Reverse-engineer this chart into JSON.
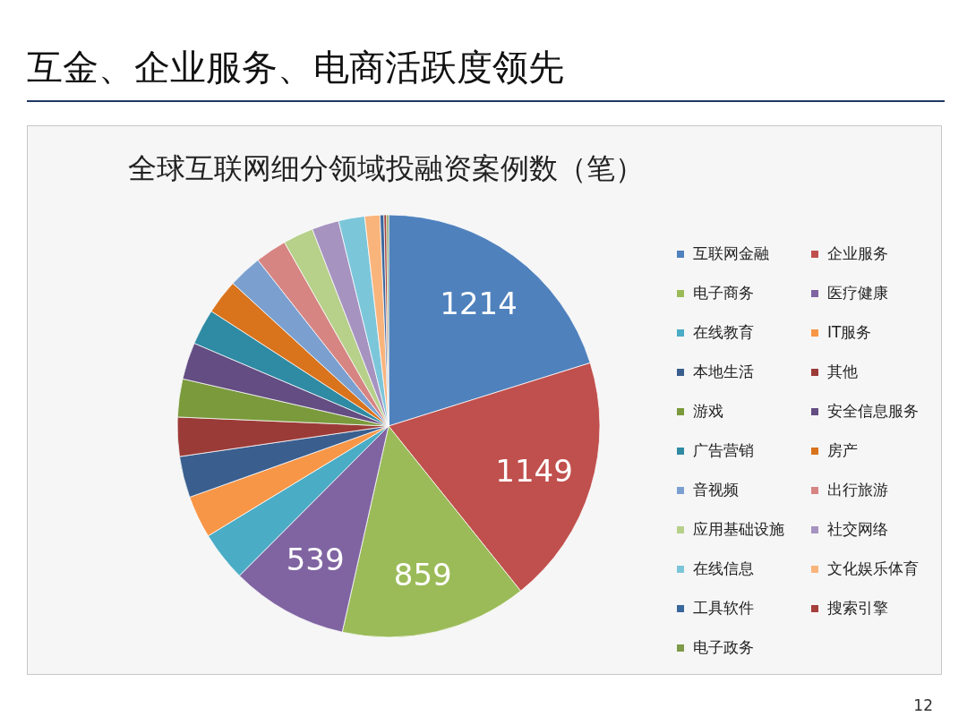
{
  "chart_data": {
    "type": "pie",
    "title": "互金、企业服务、电商活跃度领先",
    "subtitle": "全球互联网细分领域投融资案例数（笔）",
    "categories": [
      "互联网金融",
      "企业服务",
      "电子商务",
      "医疗健康",
      "在线教育",
      "IT服务",
      "本地生活",
      "其他",
      "游戏",
      "安全信息服务",
      "广告营销",
      "房产",
      "音视频",
      "出行旅游",
      "应用基础设施",
      "社交网络",
      "在线信息",
      "文化娱乐体育",
      "工具软件",
      "搜索引擎",
      "电子政务"
    ],
    "values": [
      1214,
      1149,
      859,
      539,
      230,
      195,
      190,
      180,
      175,
      170,
      165,
      160,
      155,
      145,
      140,
      125,
      120,
      70,
      18,
      12,
      9
    ],
    "value_labels": [
      "1214",
      "1149",
      "859",
      "539",
      null,
      null,
      null,
      null,
      null,
      null,
      null,
      null,
      null,
      null,
      null,
      null,
      null,
      null,
      null,
      null,
      null
    ],
    "colors": [
      "#4f81bd",
      "#c0504d",
      "#9bbb59",
      "#8064a2",
      "#4bacc6",
      "#f79646",
      "#3a5f8f",
      "#9b3b38",
      "#7a9a3c",
      "#634d82",
      "#2f8aa3",
      "#d9731c",
      "#7ba0d0",
      "#d68583",
      "#b7d08a",
      "#a693c0",
      "#7cc6da",
      "#f9b47c",
      "#3a679c",
      "#a5403d",
      "#7f9a48"
    ],
    "legend": "right",
    "annotations": [
      "12"
    ]
  }
}
